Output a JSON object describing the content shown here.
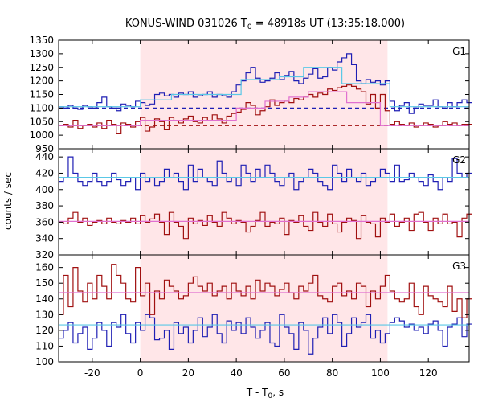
{
  "figure": {
    "title": "KONUS-WIND 031026 T",
    "title_sub": "0",
    "title_rest": " = 48918s UT (13:35:18.000)",
    "xlabel": "T - T",
    "xlabel_sub": "0",
    "xlabel_rest": ", s",
    "ylabel": "counts / sec"
  },
  "colors": {
    "blue": "#1f1fb4",
    "red": "#a01010",
    "cyan_fit": "#5ac8e6",
    "pink_fit": "#e070d0",
    "shade": "#ffe6e8"
  },
  "chart_data": {
    "type": "line",
    "x_range": [
      -34,
      137
    ],
    "xticks": [
      -20,
      0,
      20,
      40,
      60,
      80,
      100,
      120
    ],
    "shaded_interval": [
      0,
      103
    ],
    "panels": [
      {
        "label": "G1",
        "ylim": [
          950,
          1350
        ],
        "yticks": [
          950,
          1000,
          1050,
          1100,
          1150,
          1200,
          1250,
          1300,
          1350
        ],
        "background_levels": [
          {
            "series": "blue",
            "value": 1100,
            "style": "dashed"
          },
          {
            "series": "red",
            "value": 1035,
            "style": "dashed"
          }
        ],
        "series": [
          {
            "color_key": "blue",
            "x_start": -34,
            "step": 2,
            "values": [
              1105,
              1100,
              1110,
              1100,
              1095,
              1110,
              1105,
              1100,
              1120,
              1140,
              1105,
              1100,
              1090,
              1115,
              1110,
              1105,
              1125,
              1120,
              1110,
              1115,
              1150,
              1155,
              1145,
              1150,
              1140,
              1155,
              1150,
              1160,
              1140,
              1145,
              1150,
              1160,
              1140,
              1150,
              1145,
              1140,
              1160,
              1185,
              1200,
              1230,
              1250,
              1210,
              1195,
              1200,
              1210,
              1230,
              1205,
              1220,
              1235,
              1200,
              1190,
              1210,
              1225,
              1245,
              1210,
              1215,
              1250,
              1240,
              1270,
              1285,
              1300,
              1260,
              1200,
              1190,
              1205,
              1195,
              1200,
              1185,
              1200,
              1125,
              1090,
              1110,
              1120,
              1080,
              1100,
              1115,
              1110,
              1110,
              1130,
              1105,
              1100,
              1120,
              1105,
              1120,
              1130,
              1120
            ]
          },
          {
            "color_key": "red",
            "x_start": -34,
            "step": 2,
            "values": [
              1035,
              1040,
              1030,
              1055,
              1025,
              1035,
              1040,
              1030,
              1045,
              1025,
              1055,
              1040,
              1005,
              1045,
              1040,
              1030,
              1050,
              1065,
              1015,
              1030,
              1060,
              1050,
              1020,
              1065,
              1055,
              1045,
              1060,
              1070,
              1050,
              1045,
              1065,
              1055,
              1075,
              1060,
              1045,
              1070,
              1080,
              1085,
              1095,
              1120,
              1110,
              1075,
              1090,
              1105,
              1130,
              1110,
              1120,
              1125,
              1120,
              1135,
              1130,
              1140,
              1150,
              1140,
              1155,
              1150,
              1170,
              1165,
              1175,
              1180,
              1185,
              1180,
              1170,
              1160,
              1115,
              1150,
              1100,
              1150,
              1090,
              1040,
              1050,
              1040,
              1035,
              1045,
              1030,
              1035,
              1045,
              1040,
              1030,
              1035,
              1050,
              1040,
              1045,
              1035,
              1040,
              1040
            ]
          }
        ],
        "fit_curves": [
          {
            "color_key": "cyan_fit",
            "points": [
              [
                -34,
                1105
              ],
              [
                0,
                1105
              ],
              [
                0,
                1130
              ],
              [
                13,
                1130
              ],
              [
                13,
                1150
              ],
              [
                42,
                1150
              ],
              [
                42,
                1205
              ],
              [
                58,
                1205
              ],
              [
                58,
                1215
              ],
              [
                68,
                1215
              ],
              [
                68,
                1250
              ],
              [
                84,
                1250
              ],
              [
                84,
                1190
              ],
              [
                104,
                1190
              ],
              [
                104,
                1105
              ],
              [
                137,
                1105
              ]
            ]
          },
          {
            "color_key": "pink_fit",
            "points": [
              [
                -34,
                1035
              ],
              [
                0,
                1035
              ],
              [
                0,
                1055
              ],
              [
                40,
                1055
              ],
              [
                40,
                1100
              ],
              [
                52,
                1100
              ],
              [
                52,
                1125
              ],
              [
                62,
                1125
              ],
              [
                62,
                1140
              ],
              [
                70,
                1140
              ],
              [
                70,
                1160
              ],
              [
                86,
                1160
              ],
              [
                86,
                1120
              ],
              [
                100,
                1120
              ],
              [
                100,
                1035
              ],
              [
                137,
                1035
              ]
            ]
          }
        ]
      },
      {
        "label": "G2",
        "ylim": [
          320,
          450
        ],
        "yticks": [
          320,
          340,
          360,
          380,
          400,
          420,
          440
        ],
        "series": [
          {
            "color_key": "blue",
            "x_start": -34,
            "step": 2,
            "values": [
              410,
              415,
              440,
              420,
              410,
              405,
              410,
              420,
              410,
              405,
              410,
              420,
              412,
              405,
              410,
              415,
              400,
              420,
              410,
              415,
              405,
              410,
              425,
              415,
              420,
              410,
              400,
              430,
              410,
              425,
              415,
              410,
              405,
              435,
              420,
              410,
              415,
              405,
              430,
              420,
              410,
              425,
              415,
              430,
              420,
              410,
              405,
              415,
              420,
              400,
              410,
              415,
              425,
              420,
              410,
              405,
              400,
              430,
              420,
              410,
              425,
              415,
              410,
              420,
              405,
              410,
              415,
              425,
              420,
              410,
              430,
              410,
              412,
              420,
              415,
              410,
              405,
              418,
              410,
              400,
              415,
              410,
              438,
              420,
              415,
              420
            ]
          },
          {
            "color_key": "red",
            "x_start": -34,
            "step": 2,
            "values": [
              360,
              358,
              365,
              372,
              360,
              365,
              356,
              360,
              362,
              358,
              365,
              360,
              358,
              362,
              360,
              365,
              358,
              368,
              360,
              364,
              370,
              360,
              345,
              372,
              360,
              355,
              340,
              365,
              358,
              362,
              356,
              368,
              360,
              355,
              372,
              365,
              358,
              362,
              360,
              348,
              355,
              362,
              372,
              355,
              360,
              358,
              365,
              345,
              362,
              360,
              368,
              355,
              350,
              372,
              360,
              355,
              370,
              358,
              348,
              360,
              365,
              362,
              340,
              368,
              360,
              358,
              342,
              365,
              360,
              370,
              355,
              360,
              365,
              350,
              370,
              372,
              360,
              350,
              365,
              358,
              370,
              358,
              360,
              342,
              365,
              370
            ]
          }
        ],
        "fit_curves": [
          {
            "color_key": "cyan_fit",
            "points": [
              [
                -34,
                415
              ],
              [
                137,
                415
              ]
            ]
          },
          {
            "color_key": "pink_fit",
            "points": [
              [
                -34,
                361
              ],
              [
                137,
                361
              ]
            ]
          }
        ]
      },
      {
        "label": "G3",
        "ylim": [
          100,
          168
        ],
        "yticks": [
          100,
          110,
          120,
          130,
          140,
          150,
          160
        ],
        "series": [
          {
            "color_key": "blue",
            "x_start": -34,
            "step": 2,
            "values": [
              115,
              120,
              125,
              112,
              118,
              122,
              108,
              115,
              125,
              120,
              110,
              125,
              122,
              130,
              118,
              112,
              125,
              120,
              130,
              128,
              114,
              115,
              120,
              108,
              125,
              118,
              122,
              112,
              120,
              128,
              116,
              122,
              130,
              118,
              112,
              126,
              120,
              125,
              118,
              128,
              122,
              115,
              120,
              125,
              112,
              110,
              130,
              122,
              118,
              108,
              125,
              120,
              105,
              115,
              122,
              128,
              118,
              130,
              125,
              110,
              118,
              128,
              122,
              125,
              130,
              115,
              120,
              112,
              118,
              125,
              128,
              126,
              122,
              124,
              120,
              122,
              118,
              124,
              126,
              120,
              110,
              122,
              124,
              128,
              116,
              124
            ]
          },
          {
            "color_key": "red",
            "x_start": -34,
            "step": 2,
            "values": [
              130,
              155,
              135,
              160,
              145,
              138,
              150,
              140,
              155,
              148,
              140,
              162,
              155,
              150,
              140,
              138,
              160,
              142,
              150,
              130,
              145,
              140,
              152,
              148,
              145,
              140,
              142,
              150,
              154,
              148,
              145,
              150,
              142,
              145,
              148,
              140,
              150,
              145,
              142,
              148,
              140,
              152,
              145,
              150,
              148,
              142,
              146,
              150,
              144,
              140,
              148,
              145,
              150,
              155,
              142,
              140,
              138,
              148,
              150,
              142,
              145,
              140,
              150,
              148,
              135,
              145,
              140,
              148,
              155,
              145,
              140,
              138,
              140,
              150,
              135,
              130,
              148,
              142,
              140,
              138,
              135,
              148,
              132,
              140,
              128,
              140
            ]
          }
        ],
        "fit_curves": [
          {
            "color_key": "cyan_fit",
            "points": [
              [
                -34,
                123.5
              ],
              [
                137,
                123.5
              ]
            ]
          },
          {
            "color_key": "pink_fit",
            "points": [
              [
                -34,
                144
              ],
              [
                137,
                144
              ]
            ]
          }
        ]
      }
    ]
  }
}
